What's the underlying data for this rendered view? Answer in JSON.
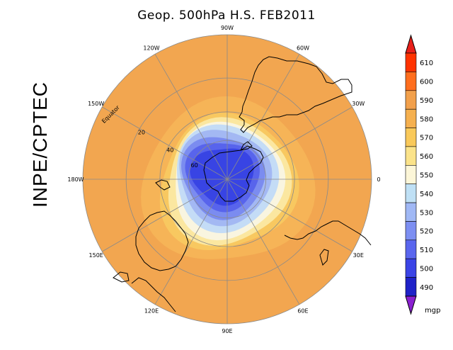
{
  "title": "Geop. 500hPa H.S. FEB2011",
  "side_label": "INPE/CPTEC",
  "map": {
    "projection": "south-polar-stereographic",
    "longitude_labels": [
      {
        "text": "90W",
        "lon": -90
      },
      {
        "text": "60W",
        "lon": -60
      },
      {
        "text": "30W",
        "lon": -30
      },
      {
        "text": "0",
        "lon": 0
      },
      {
        "text": "30E",
        "lon": 30
      },
      {
        "text": "60E",
        "lon": 60
      },
      {
        "text": "90E",
        "lon": 90
      },
      {
        "text": "120E",
        "lon": 120
      },
      {
        "text": "150E",
        "lon": 150
      },
      {
        "text": "180W",
        "lon": 180
      },
      {
        "text": "150W",
        "lon": -150
      },
      {
        "text": "120W",
        "lon": -120
      }
    ],
    "latitude_labels": [
      {
        "text": "Equator",
        "lat": 0
      },
      {
        "text": "20",
        "lat": -20
      },
      {
        "text": "40",
        "lat": -40
      },
      {
        "text": "60",
        "lat": -60
      }
    ]
  },
  "colorbar": {
    "unit": "mgp",
    "levels": [
      "610",
      "600",
      "590",
      "580",
      "570",
      "560",
      "550",
      "540",
      "530",
      "520",
      "510",
      "500",
      "490"
    ],
    "colors": [
      "#ff3300",
      "#ff6e1e",
      "#f2a04b",
      "#f5b04f",
      "#f9c95a",
      "#fbe38a",
      "#fcf6d8",
      "#bfe0f5",
      "#a0b8f5",
      "#7d8ff2",
      "#5a66ee",
      "#3b44e6",
      "#1f22c8"
    ],
    "top_arrow_color": "#e8201a",
    "bottom_arrow_color": "#8a20d0"
  },
  "field_colors": {
    "outer": "#f2a650",
    "ring_580": "#f6b457",
    "ring_570": "#f8c860",
    "ring_560": "#fbe7a0",
    "ring_550": "#f9f5e0",
    "ring_540": "#c4dcf6",
    "ring_530": "#a3b8f3",
    "ring_520": "#7b8cf0",
    "ring_510": "#5864ec",
    "core": "#3844e4"
  }
}
